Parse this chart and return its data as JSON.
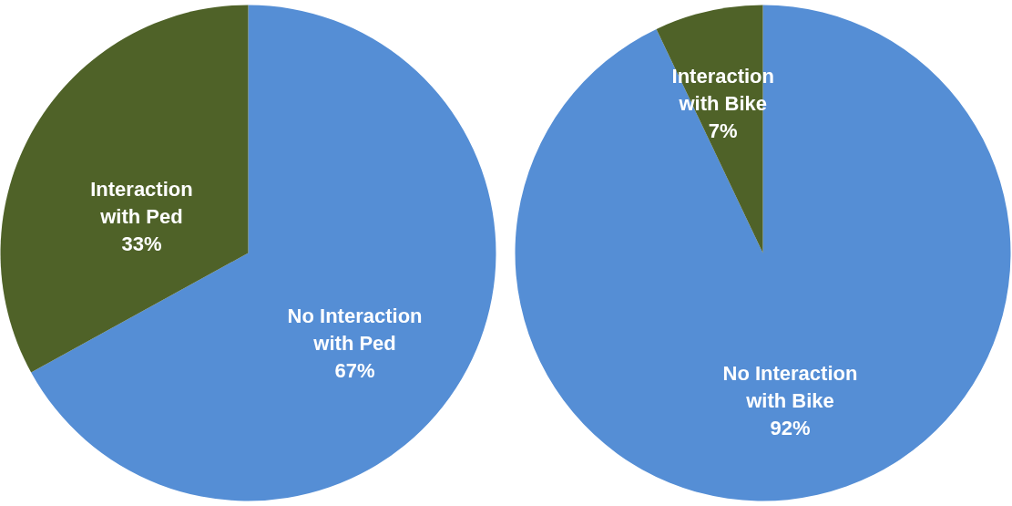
{
  "chart_data": [
    {
      "type": "pie",
      "categories": [
        "No Interaction with Ped",
        "Interaction with Ped"
      ],
      "values": [
        67,
        33
      ],
      "colors": [
        "#558ed5",
        "#4f6228"
      ],
      "value_labels": [
        "67%",
        "33%"
      ]
    },
    {
      "type": "pie",
      "categories": [
        "No Interaction with Bike",
        "Interaction with Bike"
      ],
      "values": [
        92,
        7
      ],
      "colors": [
        "#558ed5",
        "#4f6228"
      ],
      "value_labels": [
        "92%",
        "7%"
      ]
    }
  ]
}
